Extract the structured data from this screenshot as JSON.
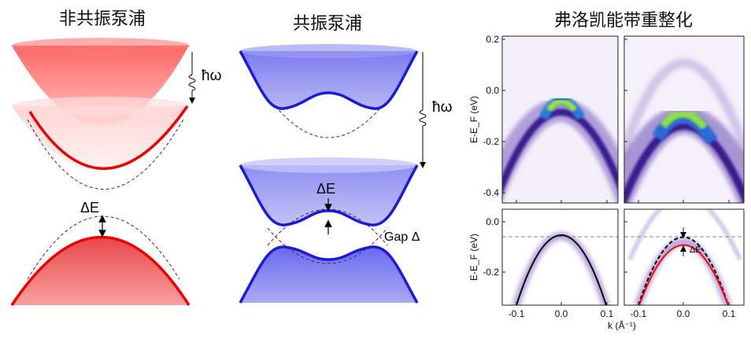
{
  "panels": {
    "nonresonant": {
      "title": "非共振泵浦",
      "photon_label": "ħω",
      "gap_label": "ΔE"
    },
    "resonant": {
      "title": "共振泵浦",
      "photon_label": "ħω",
      "gap_label": "ΔE",
      "gap_annotation": "Gap Δ"
    },
    "floquet": {
      "title": "弗洛凯能带重整化"
    }
  },
  "colors": {
    "nonresonant_band": "#ee1c1c",
    "resonant_band": "#1a1adb",
    "arpes_intensity": "#4b2a9a",
    "fit_red": "#ff0000"
  },
  "chart_data": {
    "type": "heatmap",
    "ylabel": "E-E_F (eV)",
    "xlabel": "k (Å⁻¹)",
    "x_ticks": [
      "-0.1",
      "0.0",
      "0.1"
    ],
    "x_range": [
      -0.13,
      0.125
    ],
    "top_row": {
      "y_ticks": [
        "0.2",
        "0.0",
        "-0.2",
        "-0.4"
      ],
      "y_range": [
        -0.45,
        0.2
      ]
    },
    "bottom_row": {
      "y_ticks": [
        "0.0",
        "-0.2"
      ],
      "y_range": [
        -0.33,
        0.05
      ],
      "reference_line_eV": -0.06,
      "shift_label": "ΔE"
    },
    "panels": [
      {
        "row": "top",
        "col": "left",
        "band_top_eV": -0.06
      },
      {
        "row": "top",
        "col": "right",
        "band_top_eV": -0.1
      },
      {
        "row": "bottom",
        "col": "left",
        "band_top_eV": -0.06,
        "fit": "black solid"
      },
      {
        "row": "bottom",
        "col": "right",
        "band_top_eV": -0.1,
        "fit": "red solid",
        "unperturbed": "black dashed"
      }
    ]
  }
}
